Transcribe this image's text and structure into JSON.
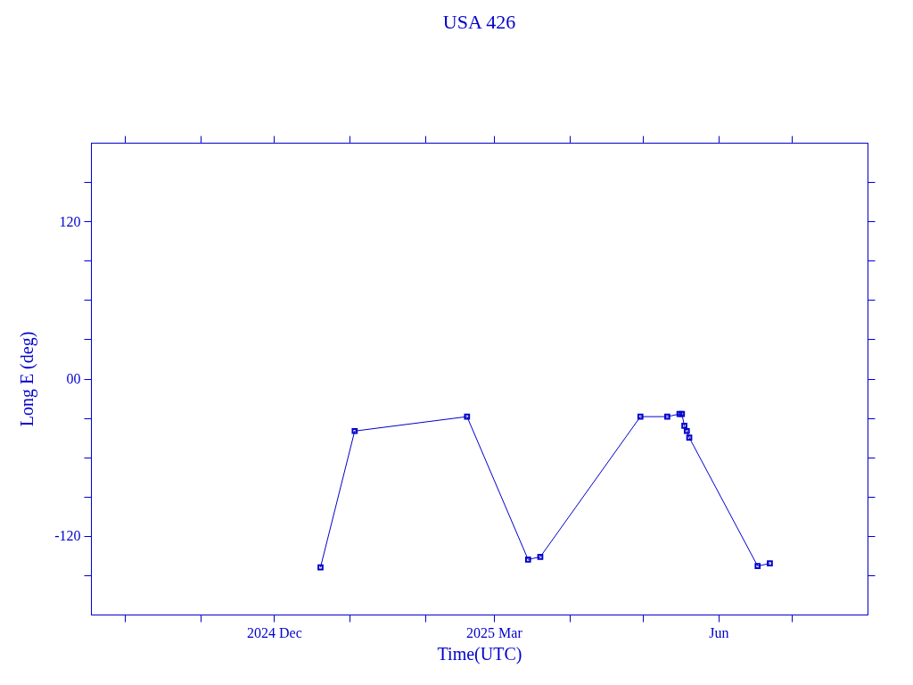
{
  "chart_data": {
    "type": "line",
    "title": "USA 426",
    "xlabel": "Time(UTC)",
    "ylabel": "Long E (deg)",
    "x": [
      "2024-12-20",
      "2025-01-03",
      "2025-02-18",
      "2025-03-15",
      "2025-03-20",
      "2025-04-30",
      "2025-05-11",
      "2025-05-16",
      "2025-05-17",
      "2025-05-18",
      "2025-05-19",
      "2025-05-20",
      "2025-06-17",
      "2025-06-22"
    ],
    "series": [
      {
        "color": "#0000cc",
        "values": [
          -144,
          -40,
          -29,
          -138,
          -136,
          -29,
          -29,
          -27,
          -27,
          -36,
          -40,
          -45,
          -143,
          -141
        ]
      }
    ],
    "xlim": [
      "2024-09-17",
      "2025-08-01"
    ],
    "xticks": [
      {
        "value": "2024-10-01",
        "label": null
      },
      {
        "value": "2024-11-01",
        "label": null
      },
      {
        "value": "2024-12-01",
        "label": "2024 Dec"
      },
      {
        "value": "2025-01-01",
        "label": null
      },
      {
        "value": "2025-02-01",
        "label": null
      },
      {
        "value": "2025-03-01",
        "label": "2025 Mar"
      },
      {
        "value": "2025-04-01",
        "label": null
      },
      {
        "value": "2025-05-01",
        "label": null
      },
      {
        "value": "2025-06-01",
        "label": "Jun"
      },
      {
        "value": "2025-07-01",
        "label": null
      }
    ],
    "ylim": [
      -180,
      180
    ],
    "yticks": [
      {
        "value": -150,
        "label": null
      },
      -120,
      {
        "value": -90,
        "label": null
      },
      {
        "value": -60,
        "label": null
      },
      {
        "value": -30,
        "label": null
      },
      {
        "value": 0,
        "label": "00"
      },
      {
        "value": 30,
        "label": null
      },
      {
        "value": 60,
        "label": null
      },
      {
        "value": 90,
        "label": null
      },
      120,
      {
        "value": 150,
        "label": null
      }
    ],
    "grid": false,
    "marker": "square",
    "line_style": "solid"
  }
}
